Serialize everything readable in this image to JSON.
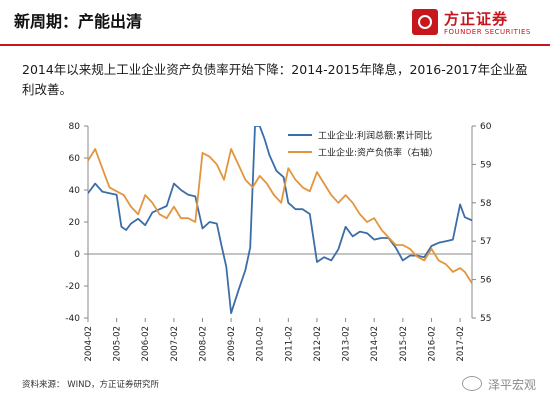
{
  "slide": {
    "title": "新周期：产能出清",
    "intro": "2014年以来规上工业企业资产负债率开始下降：2014-2015年降息，2016-2017年企业盈利改善。",
    "source": "资料来源： WIND，方正证券研究所",
    "watermark": "泽平宏观"
  },
  "logo": {
    "name_cn": "方正证券",
    "name_en": "FOUNDER SECURITIES",
    "brand_color": "#c8161d"
  },
  "chart_data": {
    "type": "line",
    "title": "",
    "xlabel": "",
    "ylabel": "",
    "x_ticks": [
      "2004-02",
      "2005-02",
      "2006-02",
      "2007-02",
      "2008-02",
      "2009-02",
      "2010-02",
      "2011-02",
      "2012-02",
      "2013-02",
      "2014-02",
      "2015-02",
      "2016-02",
      "2017-02"
    ],
    "x_range": [
      "2004-02",
      "2017-07"
    ],
    "y_left": {
      "min": -40,
      "max": 80,
      "ticks": [
        -40,
        -20,
        0,
        20,
        40,
        60,
        80
      ]
    },
    "y_right": {
      "min": 55,
      "max": 60,
      "ticks": [
        55,
        56,
        57,
        58,
        59,
        60
      ]
    },
    "grid": false,
    "legend_position": "top-right",
    "series": [
      {
        "name": "工业企业:利润总额:累计同比",
        "axis": "left",
        "color": "#3b6ea8",
        "points": [
          [
            "2004-02",
            38
          ],
          [
            "2004-05",
            44
          ],
          [
            "2004-08",
            39
          ],
          [
            "2004-11",
            38
          ],
          [
            "2005-02",
            37
          ],
          [
            "2005-04",
            17
          ],
          [
            "2005-06",
            15
          ],
          [
            "2005-08",
            19
          ],
          [
            "2005-11",
            22
          ],
          [
            "2006-02",
            18
          ],
          [
            "2006-05",
            26
          ],
          [
            "2006-08",
            28
          ],
          [
            "2006-11",
            30
          ],
          [
            "2007-02",
            44
          ],
          [
            "2007-05",
            40
          ],
          [
            "2007-08",
            37
          ],
          [
            "2007-11",
            36
          ],
          [
            "2008-02",
            16
          ],
          [
            "2008-05",
            20
          ],
          [
            "2008-08",
            19
          ],
          [
            "2008-10",
            5
          ],
          [
            "2008-12",
            -8
          ],
          [
            "2009-02",
            -37
          ],
          [
            "2009-05",
            -23
          ],
          [
            "2009-08",
            -10
          ],
          [
            "2009-10",
            4
          ],
          [
            "2009-12",
            80
          ],
          [
            "2010-02",
            80
          ],
          [
            "2010-04",
            72
          ],
          [
            "2010-06",
            62
          ],
          [
            "2010-09",
            52
          ],
          [
            "2010-12",
            48
          ],
          [
            "2011-02",
            32
          ],
          [
            "2011-05",
            28
          ],
          [
            "2011-08",
            28
          ],
          [
            "2011-11",
            25
          ],
          [
            "2012-02",
            -5
          ],
          [
            "2012-05",
            -2
          ],
          [
            "2012-08",
            -4
          ],
          [
            "2012-11",
            3
          ],
          [
            "2013-02",
            17
          ],
          [
            "2013-05",
            11
          ],
          [
            "2013-08",
            14
          ],
          [
            "2013-11",
            13
          ],
          [
            "2014-02",
            9
          ],
          [
            "2014-05",
            10
          ],
          [
            "2014-08",
            10
          ],
          [
            "2014-11",
            4
          ],
          [
            "2015-02",
            -4
          ],
          [
            "2015-05",
            -1
          ],
          [
            "2015-08",
            -1
          ],
          [
            "2015-11",
            -2
          ],
          [
            "2016-02",
            5
          ],
          [
            "2016-05",
            7
          ],
          [
            "2016-08",
            8
          ],
          [
            "2016-11",
            9
          ],
          [
            "2017-02",
            31
          ],
          [
            "2017-04",
            23
          ],
          [
            "2017-07",
            21
          ]
        ]
      },
      {
        "name": "工业企业:资产负债率（右轴）",
        "axis": "right",
        "color": "#e3953e",
        "points": [
          [
            "2004-02",
            59.1
          ],
          [
            "2004-05",
            59.4
          ],
          [
            "2004-08",
            58.9
          ],
          [
            "2004-11",
            58.4
          ],
          [
            "2005-02",
            58.3
          ],
          [
            "2005-05",
            58.2
          ],
          [
            "2005-08",
            57.9
          ],
          [
            "2005-11",
            57.7
          ],
          [
            "2006-02",
            58.2
          ],
          [
            "2006-05",
            58.0
          ],
          [
            "2006-08",
            57.7
          ],
          [
            "2006-11",
            57.6
          ],
          [
            "2007-02",
            57.9
          ],
          [
            "2007-05",
            57.6
          ],
          [
            "2007-08",
            57.6
          ],
          [
            "2007-11",
            57.5
          ],
          [
            "2008-02",
            59.3
          ],
          [
            "2008-05",
            59.2
          ],
          [
            "2008-08",
            59.0
          ],
          [
            "2008-11",
            58.6
          ],
          [
            "2009-02",
            59.4
          ],
          [
            "2009-05",
            59.0
          ],
          [
            "2009-08",
            58.6
          ],
          [
            "2009-11",
            58.4
          ],
          [
            "2010-02",
            58.7
          ],
          [
            "2010-05",
            58.5
          ],
          [
            "2010-08",
            58.2
          ],
          [
            "2010-11",
            58.0
          ],
          [
            "2011-02",
            58.9
          ],
          [
            "2011-05",
            58.6
          ],
          [
            "2011-08",
            58.4
          ],
          [
            "2011-11",
            58.3
          ],
          [
            "2012-02",
            58.8
          ],
          [
            "2012-05",
            58.5
          ],
          [
            "2012-08",
            58.2
          ],
          [
            "2012-11",
            58.0
          ],
          [
            "2013-02",
            58.2
          ],
          [
            "2013-05",
            58.0
          ],
          [
            "2013-08",
            57.7
          ],
          [
            "2013-11",
            57.5
          ],
          [
            "2014-02",
            57.6
          ],
          [
            "2014-05",
            57.3
          ],
          [
            "2014-08",
            57.1
          ],
          [
            "2014-11",
            56.9
          ],
          [
            "2015-02",
            56.9
          ],
          [
            "2015-05",
            56.8
          ],
          [
            "2015-08",
            56.6
          ],
          [
            "2015-11",
            56.5
          ],
          [
            "2016-02",
            56.8
          ],
          [
            "2016-05",
            56.5
          ],
          [
            "2016-08",
            56.4
          ],
          [
            "2016-11",
            56.2
          ],
          [
            "2017-02",
            56.3
          ],
          [
            "2017-04",
            56.2
          ],
          [
            "2017-07",
            55.9
          ]
        ]
      }
    ]
  }
}
